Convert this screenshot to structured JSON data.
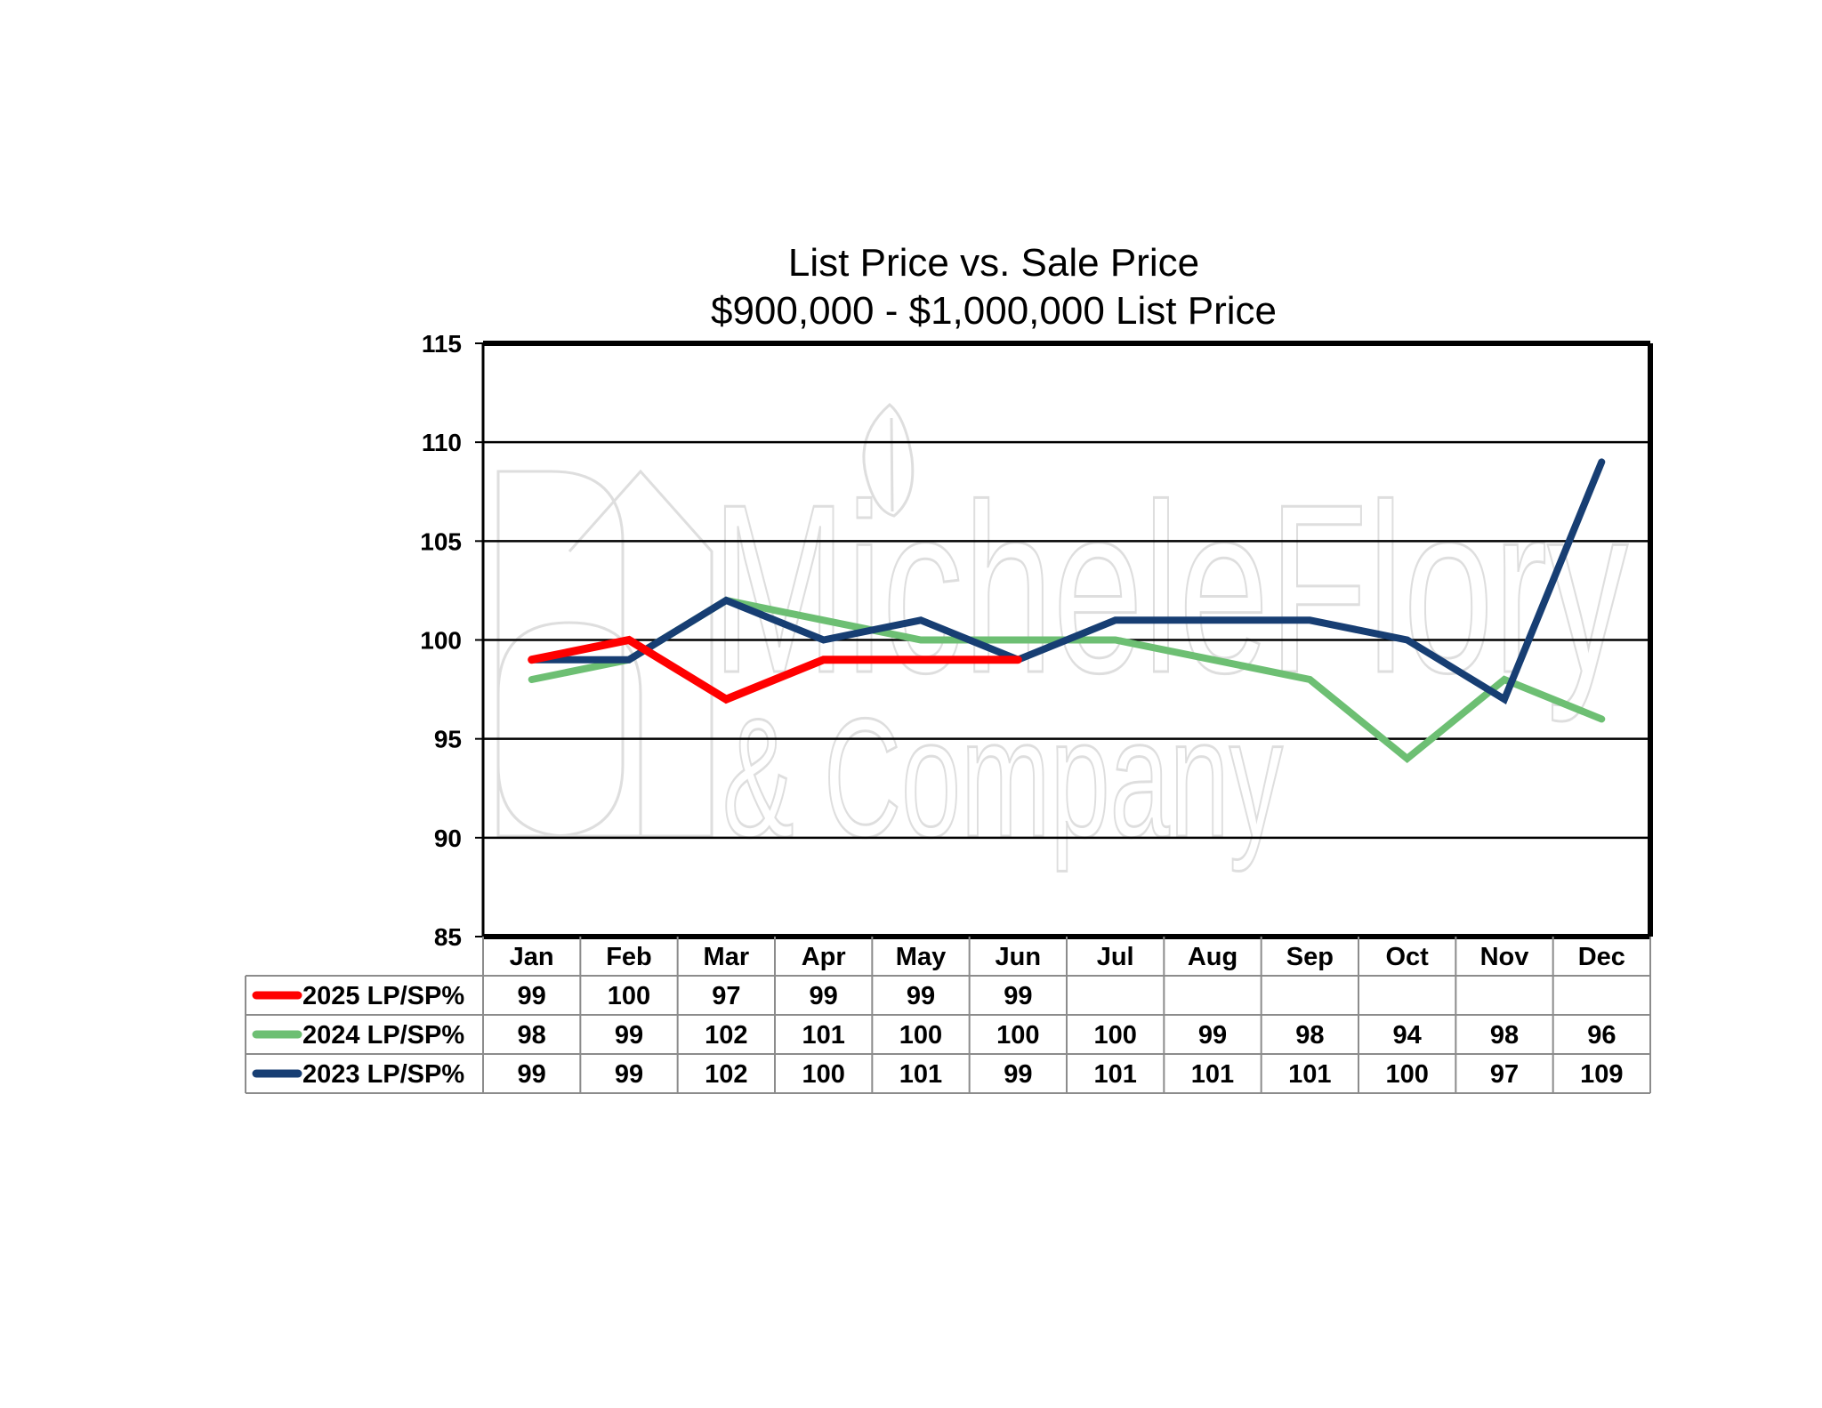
{
  "chart_data": {
    "type": "line",
    "title": "List Price vs. Sale Price",
    "subtitle": "$900,000 - $1,000,000 List Price",
    "xlabel": "",
    "ylabel": "",
    "ylim": [
      85,
      115
    ],
    "yticks": [
      85,
      90,
      95,
      100,
      105,
      110,
      115
    ],
    "categories": [
      "Jan",
      "Feb",
      "Mar",
      "Apr",
      "May",
      "Jun",
      "Jul",
      "Aug",
      "Sep",
      "Oct",
      "Nov",
      "Dec"
    ],
    "grid": true,
    "legend": "data-table",
    "series": [
      {
        "name": "2025 LP/SP%",
        "color": "#ff0000",
        "values": [
          99,
          100,
          97,
          99,
          99,
          99,
          null,
          null,
          null,
          null,
          null,
          null
        ]
      },
      {
        "name": "2024 LP/SP%",
        "color": "#6dbf73",
        "values": [
          98,
          99,
          102,
          101,
          100,
          100,
          100,
          99,
          98,
          94,
          98,
          96
        ]
      },
      {
        "name": "2023 LP/SP%",
        "color": "#173e73",
        "values": [
          99,
          99,
          102,
          100,
          101,
          99,
          101,
          101,
          101,
          100,
          97,
          109
        ]
      }
    ]
  },
  "watermark": {
    "line1": "MicheleFlory",
    "line2": "& Company"
  }
}
